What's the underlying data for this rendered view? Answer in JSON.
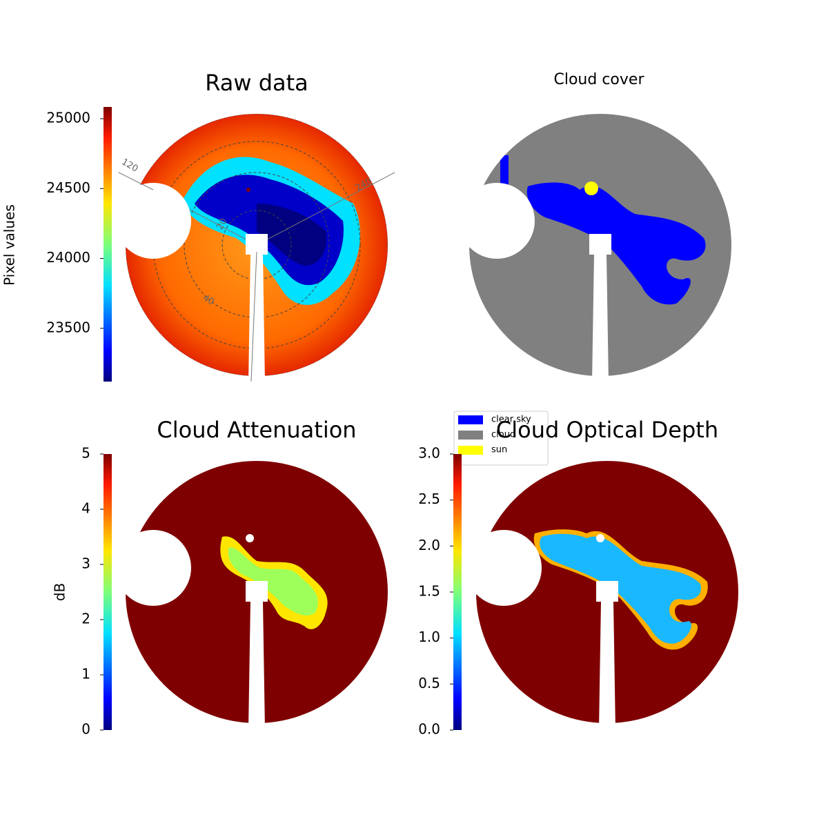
{
  "chart_data": [
    {
      "type": "image",
      "title": "Raw data",
      "colormap": "jet",
      "colorbar_label": "Pixel values",
      "clim": [
        23119,
        25084
      ],
      "cticks": [
        23500,
        24000,
        24500,
        25000
      ],
      "annotations": [
        "120",
        "20",
        "40",
        "240"
      ]
    },
    {
      "type": "image",
      "title": "Cloud cover",
      "legend": {
        "position": "bottom-left",
        "entries": [
          {
            "name": "clear sky",
            "color": "#0000ff"
          },
          {
            "name": "cloud",
            "color": "#808080"
          },
          {
            "name": "sun",
            "color": "#ffff00"
          }
        ]
      }
    },
    {
      "type": "image",
      "title": "Cloud Attenuation",
      "colormap": "jet",
      "colorbar_label": "dB",
      "clim": [
        0,
        5
      ],
      "cticks": [
        0,
        1,
        2,
        3,
        4,
        5
      ]
    },
    {
      "type": "image",
      "title": "Cloud Optical Depth",
      "colormap": "jet",
      "clim": [
        0,
        3
      ],
      "cticks": [
        {
          "value": 0,
          "label": "0.0"
        },
        {
          "value": 0.5,
          "label": "0.5"
        },
        {
          "value": 1,
          "label": "1.0"
        },
        {
          "value": 1.5,
          "label": "1.5"
        },
        {
          "value": 2,
          "label": "2.0"
        },
        {
          "value": 2.5,
          "label": "2.5"
        },
        {
          "value": 3,
          "label": "3.0"
        }
      ]
    }
  ]
}
